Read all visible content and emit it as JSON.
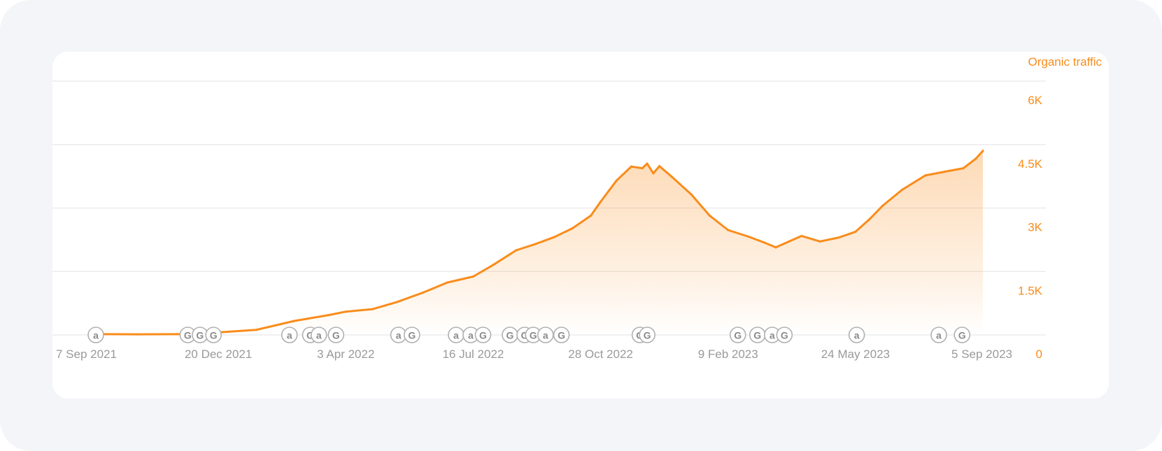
{
  "chart_data": {
    "type": "area",
    "series": [
      {
        "name": "Organic traffic",
        "x": [
          "2021-09-07",
          "2021-10-15",
          "2021-11-20",
          "2021-12-20",
          "2022-01-20",
          "2022-02-20",
          "2022-03-20",
          "2022-04-03",
          "2022-04-25",
          "2022-05-15",
          "2022-06-05",
          "2022-06-25",
          "2022-07-16",
          "2022-08-01",
          "2022-08-20",
          "2022-09-05",
          "2022-09-20",
          "2022-10-05",
          "2022-10-20",
          "2022-10-28",
          "2022-11-10",
          "2022-11-22",
          "2022-12-01",
          "2022-12-05",
          "2022-12-10",
          "2022-12-15",
          "2022-12-25",
          "2023-01-10",
          "2023-01-25",
          "2023-02-09",
          "2023-02-25",
          "2023-03-10",
          "2023-03-20",
          "2023-04-10",
          "2023-04-25",
          "2023-05-10",
          "2023-05-24",
          "2023-06-05",
          "2023-06-15",
          "2023-07-01",
          "2023-07-20",
          "2023-08-05",
          "2023-08-20",
          "2023-08-30",
          "2023-09-05"
        ],
        "values": [
          20,
          15,
          20,
          60,
          120,
          330,
          470,
          550,
          610,
          780,
          1000,
          1240,
          1380,
          1650,
          2000,
          2150,
          2310,
          2520,
          2820,
          3150,
          3650,
          3980,
          3940,
          4050,
          3820,
          3990,
          3740,
          3320,
          2820,
          2480,
          2330,
          2190,
          2070,
          2340,
          2210,
          2300,
          2440,
          2750,
          3050,
          3430,
          3770,
          3860,
          3940,
          4160,
          4350
        ]
      }
    ],
    "ylim": [
      0,
      6000
    ],
    "xlim": [
      "2021-09-07",
      "2023-09-05"
    ],
    "y_ticks": [
      "0",
      "1.5K",
      "3K",
      "4.5K",
      "6K"
    ],
    "y_tick_values": [
      0,
      1500,
      3000,
      4500,
      6000
    ],
    "x_ticks": [
      "7 Sep 2021",
      "20 Dec 2021",
      "3 Apr 2022",
      "16 Jul 2022",
      "28 Oct 2022",
      "9 Feb 2023",
      "24 May 2023",
      "5 Sep 2023"
    ],
    "x_tick_values": [
      "2021-09-07",
      "2021-12-20",
      "2022-04-03",
      "2022-07-16",
      "2022-10-28",
      "2023-02-09",
      "2023-05-24",
      "2023-09-05"
    ],
    "y_axis_title": "Organic traffic",
    "grid": true,
    "colors": {
      "line": "#f98c1b",
      "axis_text": "#f98c1b",
      "x_text": "#9a9a9a",
      "grid": "#e8e8e8",
      "marker": "#b0b0b0"
    },
    "annotations": [
      {
        "type": "a",
        "date": "2021-09-11"
      },
      {
        "type": "G",
        "date": "2021-11-25"
      },
      {
        "type": "G",
        "date": "2021-12-05"
      },
      {
        "type": "G",
        "date": "2021-12-16"
      },
      {
        "type": "a",
        "date": "2022-02-16"
      },
      {
        "type": "G",
        "date": "2022-03-05"
      },
      {
        "type": "a",
        "date": "2022-03-12"
      },
      {
        "type": "G",
        "date": "2022-03-26"
      },
      {
        "type": "a",
        "date": "2022-05-16"
      },
      {
        "type": "G",
        "date": "2022-05-27"
      },
      {
        "type": "a",
        "date": "2022-07-02"
      },
      {
        "type": "a",
        "date": "2022-07-14"
      },
      {
        "type": "G",
        "date": "2022-07-24"
      },
      {
        "type": "G",
        "date": "2022-08-15"
      },
      {
        "type": "G",
        "date": "2022-08-27"
      },
      {
        "type": "G",
        "date": "2022-09-03"
      },
      {
        "type": "a",
        "date": "2022-09-13"
      },
      {
        "type": "G",
        "date": "2022-09-26"
      },
      {
        "type": "G",
        "date": "2022-11-29"
      },
      {
        "type": "G",
        "date": "2022-12-05"
      },
      {
        "type": "G",
        "date": "2023-02-17"
      },
      {
        "type": "G",
        "date": "2023-03-05"
      },
      {
        "type": "a",
        "date": "2023-03-17"
      },
      {
        "type": "G",
        "date": "2023-03-27"
      },
      {
        "type": "a",
        "date": "2023-05-25"
      },
      {
        "type": "a",
        "date": "2023-07-31"
      },
      {
        "type": "G",
        "date": "2023-08-19"
      }
    ]
  }
}
